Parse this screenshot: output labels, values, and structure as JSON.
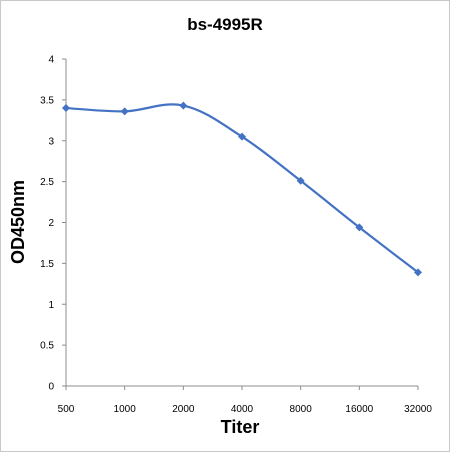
{
  "chart_data": {
    "type": "line",
    "title": "bs-4995R",
    "xlabel": "Titer",
    "ylabel": "OD450nm",
    "categories": [
      "500",
      "1000",
      "2000",
      "4000",
      "8000",
      "16000",
      "32000"
    ],
    "series": [
      {
        "values": [
          3.4,
          3.36,
          3.43,
          3.05,
          2.51,
          1.94,
          1.39
        ]
      }
    ],
    "y_ticks": [
      "0",
      "0.5",
      "1",
      "1.5",
      "2",
      "2.5",
      "3",
      "3.5",
      "4"
    ],
    "ylim": [
      0,
      4
    ],
    "grid": false,
    "legend": "none",
    "line_color": "#4472c4",
    "marker": "diamond",
    "smooth": true
  }
}
